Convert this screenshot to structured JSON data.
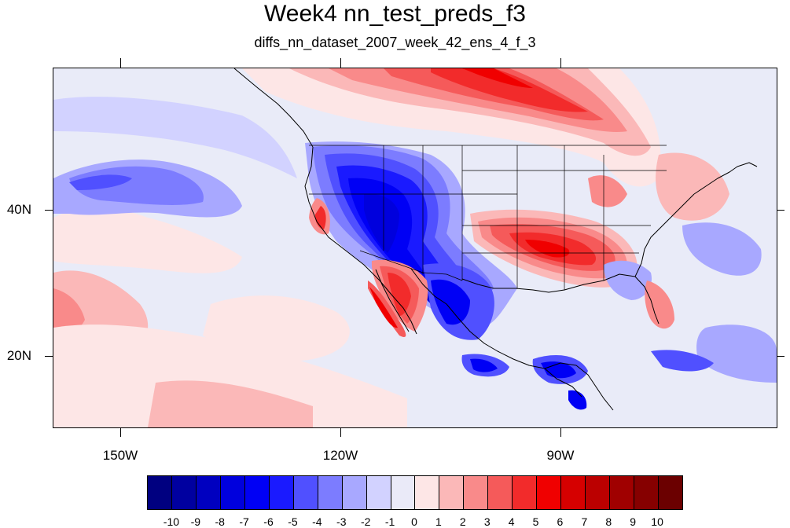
{
  "title": "Week4 nn_test_preds_f3",
  "subtitle": "diffs_nn_dataset_2007_week_42_ens_4_f_3",
  "lat_labels": [
    "40N",
    "20N"
  ],
  "lon_labels": [
    "150W",
    "120W",
    "90W"
  ],
  "colorbar": {
    "labels": [
      "-10",
      "-9",
      "-8",
      "-7",
      "-6",
      "-5",
      "-4",
      "-3",
      "-2",
      "-1",
      "0",
      "1",
      "2",
      "3",
      "4",
      "5",
      "6",
      "7",
      "8",
      "9",
      "10"
    ],
    "colors": [
      "#000080",
      "#0000a0",
      "#0000c0",
      "#0000dd",
      "#0000f5",
      "#1a1aff",
      "#5050ff",
      "#7c7cff",
      "#a8a8ff",
      "#d2d2ff",
      "#eaeaf8",
      "#fde6e6",
      "#fbb8b8",
      "#f98a8a",
      "#f55a5a",
      "#f22b2b",
      "#f00000",
      "#d60000",
      "#bb0000",
      "#a00000",
      "#860000",
      "#6b0000"
    ]
  },
  "map": {
    "region": "Contiguous United States, Mexico, Central America and the northeastern Pacific",
    "lon_range": [
      -159,
      -61
    ],
    "lat_range": [
      10,
      59
    ]
  }
}
